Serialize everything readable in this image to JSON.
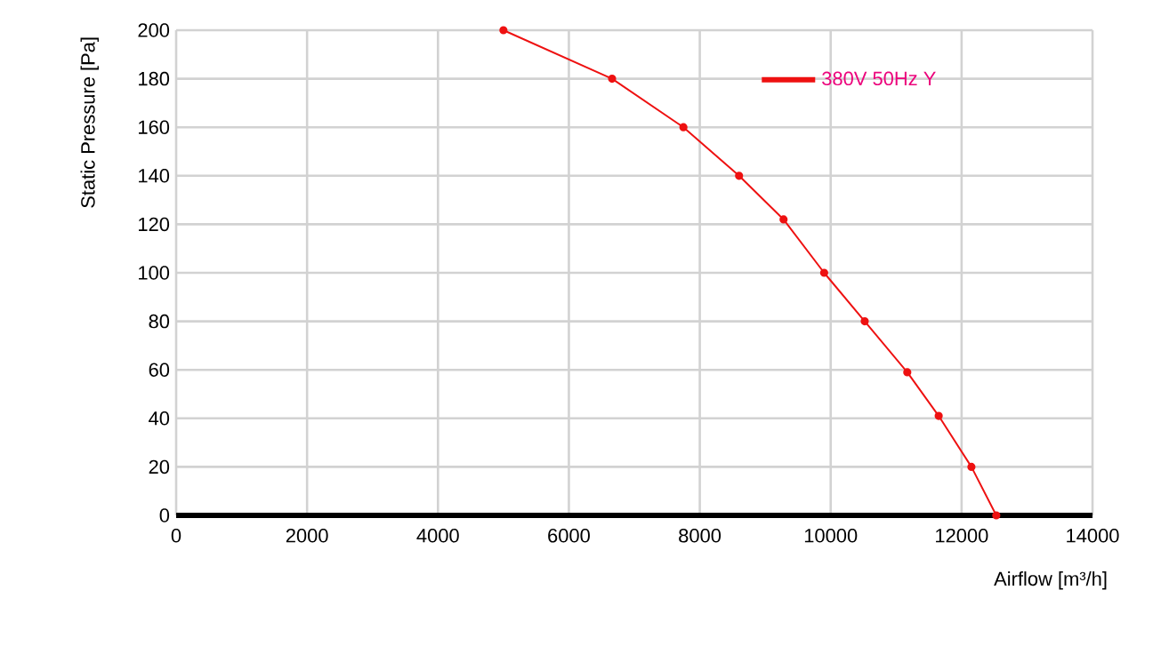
{
  "chart_data": {
    "type": "line",
    "xlabel": "Airflow [m³/h]",
    "ylabel": "Static Pressure [Pa]",
    "x": [
      5000,
      6660,
      7750,
      8600,
      9280,
      9900,
      10520,
      11170,
      11650,
      12150,
      12530
    ],
    "series": [
      {
        "name": "380V 50Hz Y",
        "color": "#ee1111",
        "values": [
          200,
          180,
          160,
          140,
          122,
          100,
          80,
          59,
          41,
          20,
          0
        ]
      }
    ],
    "xlim": [
      0,
      14000
    ],
    "ylim": [
      0,
      200
    ],
    "xticks": [
      0,
      2000,
      4000,
      6000,
      8000,
      10000,
      12000,
      14000
    ],
    "yticks": [
      0,
      20,
      40,
      60,
      80,
      100,
      120,
      140,
      160,
      180,
      200
    ],
    "grid": true,
    "legend": "top right",
    "marker": "circle",
    "line_style": "solid"
  }
}
